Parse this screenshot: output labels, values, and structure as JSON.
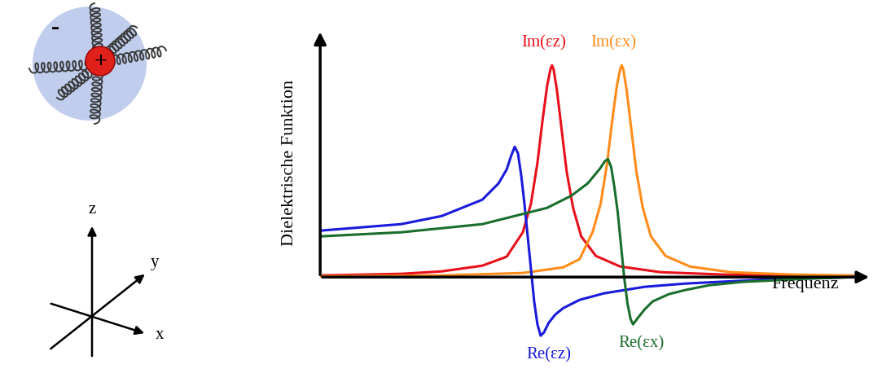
{
  "chart_data": {
    "type": "line",
    "y_label": "Dielektrische Funktion",
    "x_label": "Frequenz",
    "xlim": [
      0,
      680
    ],
    "ylim": [
      -110,
      310
    ],
    "tick_labels": false,
    "grid": false,
    "series": [
      {
        "name": "Im(εz)",
        "color": "#e8101a",
        "x": [
          0,
          100,
          150,
          200,
          230,
          250,
          260,
          268,
          274,
          280,
          284,
          286,
          288,
          292,
          298,
          304,
          312,
          322,
          340,
          370,
          420,
          500,
          660
        ],
        "values": [
          2,
          4,
          7,
          14,
          25,
          55,
          90,
          140,
          190,
          235,
          255,
          260,
          255,
          230,
          180,
          130,
          85,
          50,
          26,
          13,
          6,
          3,
          1
        ]
      },
      {
        "name": "Im(εx)",
        "color": "#ff8c1a",
        "x": [
          0,
          150,
          250,
          300,
          320,
          336,
          346,
          354,
          360,
          366,
          370,
          372,
          374,
          378,
          384,
          390,
          398,
          408,
          426,
          456,
          506,
          586,
          660
        ],
        "values": [
          1,
          2,
          5,
          12,
          22,
          55,
          90,
          140,
          190,
          235,
          255,
          260,
          255,
          230,
          180,
          130,
          85,
          50,
          26,
          13,
          6,
          3,
          2
        ]
      },
      {
        "name": "Re(εz)",
        "color": "#1a1adc",
        "x": [
          0,
          100,
          150,
          200,
          220,
          230,
          236,
          240,
          244,
          248,
          252,
          256,
          260,
          264,
          268,
          272,
          276,
          282,
          290,
          300,
          320,
          350,
          400,
          450,
          550,
          660
        ],
        "values": [
          57,
          65,
          75,
          95,
          115,
          132,
          150,
          160,
          152,
          125,
          90,
          50,
          10,
          -30,
          -58,
          -72,
          -68,
          -56,
          -46,
          -38,
          -28,
          -20,
          -12,
          -8,
          -3,
          0
        ]
      },
      {
        "name": "Re(εx)",
        "color": "#1a6e2c",
        "x": [
          0,
          100,
          200,
          280,
          310,
          330,
          345,
          351,
          355,
          359,
          363,
          367,
          371,
          375,
          379,
          383,
          386,
          392,
          400,
          410,
          430,
          450,
          480,
          520,
          600,
          660
        ],
        "values": [
          50,
          55,
          65,
          85,
          100,
          115,
          133,
          142,
          145,
          135,
          110,
          80,
          40,
          0,
          -32,
          -52,
          -58,
          -50,
          -40,
          -30,
          -21,
          -16,
          -10,
          -6,
          -2,
          0
        ]
      }
    ]
  },
  "model": {
    "charges": [
      "-",
      "+"
    ],
    "coordinate_axes": [
      "z",
      "y",
      "x"
    ]
  }
}
